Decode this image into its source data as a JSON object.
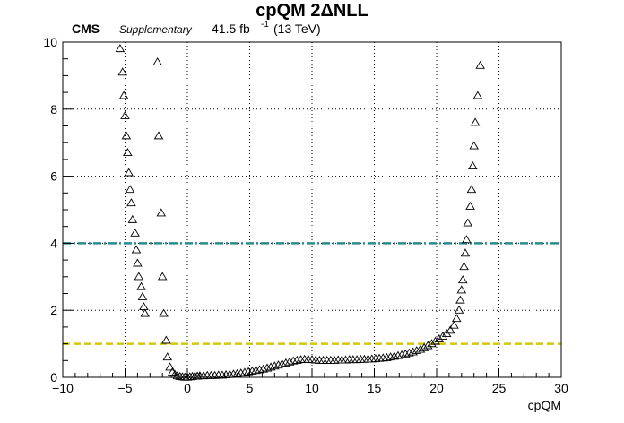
{
  "header": {
    "title": "cpQM 2ΔNLL",
    "experiment": "CMS",
    "extra": "Supplementary",
    "lumi_value": "41.5 fb",
    "lumi_exp": "-1",
    "energy": "(13 TeV)"
  },
  "chart_data": {
    "type": "scatter",
    "title": "cpQM 2ΔNLL",
    "xlabel": "cpQM",
    "ylabel": "",
    "xlim": [
      -10,
      30
    ],
    "ylim": [
      0,
      10
    ],
    "xticks": [
      -10,
      -5,
      0,
      5,
      10,
      15,
      20,
      25,
      30
    ],
    "yticks": [
      0,
      2,
      4,
      6,
      8,
      10
    ],
    "x_tick_labels": [
      "−10",
      "−5",
      "0",
      "5",
      "10",
      "15",
      "20",
      "25",
      "30"
    ],
    "y_tick_labels": [
      "0",
      "2",
      "4",
      "6",
      "8",
      "10"
    ],
    "grid": true,
    "marker": "open-triangle",
    "colors": {
      "points": "#000000",
      "line_2sigma": "#2a8c8c",
      "line_1sigma": "#d4c800"
    },
    "reference_lines": [
      {
        "y": 4,
        "color": "#2a8c8c",
        "style": "dash-dot"
      },
      {
        "y": 1,
        "color": "#d4c800",
        "style": "dashed"
      }
    ],
    "series": [
      {
        "points": [
          [
            -5.4,
            9.8
          ],
          [
            -5.2,
            9.1
          ],
          [
            -5.1,
            8.4
          ],
          [
            -5.0,
            7.8
          ],
          [
            -4.9,
            7.2
          ],
          [
            -4.8,
            6.7
          ],
          [
            -4.7,
            6.1
          ],
          [
            -4.6,
            5.6
          ],
          [
            -4.5,
            5.2
          ],
          [
            -4.4,
            4.7
          ],
          [
            -4.2,
            4.3
          ],
          [
            -4.1,
            3.8
          ],
          [
            -4.0,
            3.4
          ],
          [
            -3.9,
            3.0
          ],
          [
            -3.7,
            2.7
          ],
          [
            -3.6,
            2.4
          ],
          [
            -3.5,
            2.1
          ],
          [
            -3.4,
            1.9
          ],
          [
            -2.4,
            9.4
          ],
          [
            -2.3,
            7.2
          ],
          [
            -2.1,
            4.9
          ],
          [
            -2.0,
            3.0
          ],
          [
            -1.9,
            1.9
          ],
          [
            -1.7,
            1.1
          ],
          [
            -1.6,
            0.6
          ],
          [
            -1.4,
            0.3
          ],
          [
            -1.2,
            0.15
          ],
          [
            -1.0,
            0.08
          ],
          [
            -0.8,
            0.04
          ],
          [
            -0.6,
            0.02
          ],
          [
            -0.4,
            0.01
          ],
          [
            -0.2,
            0.0
          ],
          [
            0.0,
            0.0
          ],
          [
            0.2,
            0.01
          ],
          [
            0.4,
            0.02
          ],
          [
            0.6,
            0.03
          ],
          [
            0.8,
            0.03
          ],
          [
            1.0,
            0.04
          ],
          [
            1.3,
            0.04
          ],
          [
            1.6,
            0.05
          ],
          [
            1.9,
            0.05
          ],
          [
            2.2,
            0.05
          ],
          [
            2.5,
            0.06
          ],
          [
            2.8,
            0.06
          ],
          [
            3.1,
            0.07
          ],
          [
            3.4,
            0.08
          ],
          [
            3.7,
            0.09
          ],
          [
            4.0,
            0.1
          ],
          [
            4.3,
            0.12
          ],
          [
            4.6,
            0.14
          ],
          [
            4.9,
            0.16
          ],
          [
            5.2,
            0.18
          ],
          [
            5.5,
            0.2
          ],
          [
            5.8,
            0.22
          ],
          [
            6.1,
            0.24
          ],
          [
            6.4,
            0.27
          ],
          [
            6.7,
            0.3
          ],
          [
            7.0,
            0.33
          ],
          [
            7.3,
            0.36
          ],
          [
            7.6,
            0.39
          ],
          [
            7.9,
            0.42
          ],
          [
            8.2,
            0.45
          ],
          [
            8.5,
            0.48
          ],
          [
            8.8,
            0.5
          ],
          [
            9.1,
            0.52
          ],
          [
            9.4,
            0.53
          ],
          [
            9.7,
            0.53
          ],
          [
            10.0,
            0.52
          ],
          [
            10.3,
            0.51
          ],
          [
            10.6,
            0.5
          ],
          [
            10.9,
            0.5
          ],
          [
            11.2,
            0.5
          ],
          [
            11.5,
            0.5
          ],
          [
            11.8,
            0.5
          ],
          [
            12.1,
            0.51
          ],
          [
            12.4,
            0.51
          ],
          [
            12.7,
            0.51
          ],
          [
            13.0,
            0.52
          ],
          [
            13.3,
            0.52
          ],
          [
            13.6,
            0.52
          ],
          [
            13.9,
            0.53
          ],
          [
            14.2,
            0.53
          ],
          [
            14.5,
            0.54
          ],
          [
            14.8,
            0.54
          ],
          [
            15.1,
            0.55
          ],
          [
            15.4,
            0.56
          ],
          [
            15.7,
            0.57
          ],
          [
            16.0,
            0.58
          ],
          [
            16.3,
            0.6
          ],
          [
            16.6,
            0.62
          ],
          [
            16.9,
            0.64
          ],
          [
            17.2,
            0.66
          ],
          [
            17.5,
            0.69
          ],
          [
            17.8,
            0.72
          ],
          [
            18.1,
            0.75
          ],
          [
            18.4,
            0.79
          ],
          [
            18.7,
            0.83
          ],
          [
            19.0,
            0.88
          ],
          [
            19.3,
            0.94
          ],
          [
            19.6,
            1.0
          ],
          [
            19.9,
            1.07
          ],
          [
            20.2,
            1.14
          ],
          [
            20.5,
            1.22
          ],
          [
            20.8,
            1.3
          ],
          [
            21.1,
            1.4
          ],
          [
            21.4,
            1.55
          ],
          [
            21.6,
            1.75
          ],
          [
            21.8,
            2.0
          ],
          [
            21.9,
            2.3
          ],
          [
            22.0,
            2.6
          ],
          [
            22.1,
            2.9
          ],
          [
            22.2,
            3.3
          ],
          [
            22.3,
            3.7
          ],
          [
            22.4,
            4.1
          ],
          [
            22.5,
            4.6
          ],
          [
            22.7,
            5.1
          ],
          [
            22.8,
            5.6
          ],
          [
            22.9,
            6.3
          ],
          [
            23.0,
            6.9
          ],
          [
            23.1,
            7.6
          ],
          [
            23.3,
            8.4
          ],
          [
            23.5,
            9.3
          ]
        ]
      }
    ]
  }
}
